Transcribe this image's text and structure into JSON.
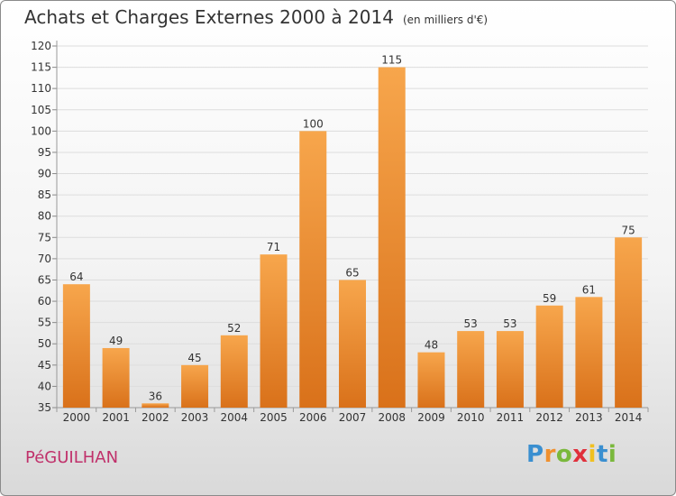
{
  "chart_data": {
    "type": "bar",
    "title": "Achats et Charges Externes 2000 à 2014",
    "subtitle": "(en milliers d'€)",
    "categories": [
      "2000",
      "2001",
      "2002",
      "2003",
      "2004",
      "2005",
      "2006",
      "2007",
      "2008",
      "2009",
      "2010",
      "2011",
      "2012",
      "2013",
      "2014"
    ],
    "values": [
      64,
      49,
      36,
      45,
      52,
      71,
      100,
      65,
      115,
      48,
      53,
      53,
      59,
      61,
      75
    ],
    "ylim": [
      35,
      120
    ],
    "yticks": [
      35,
      40,
      45,
      50,
      55,
      60,
      65,
      70,
      75,
      80,
      85,
      90,
      95,
      100,
      105,
      110,
      115,
      120
    ],
    "grid": true,
    "bar_color": "#f0902e"
  },
  "footer": {
    "place": "PéGUILHAN",
    "brand_letters": [
      "P",
      "r",
      "o",
      "x",
      "i",
      "t",
      "i"
    ],
    "brand_colors": [
      "#3a8fd0",
      "#f0902e",
      "#7ab83c",
      "#e0303c",
      "#f0c020",
      "#3a8fd0",
      "#7ab83c"
    ]
  }
}
